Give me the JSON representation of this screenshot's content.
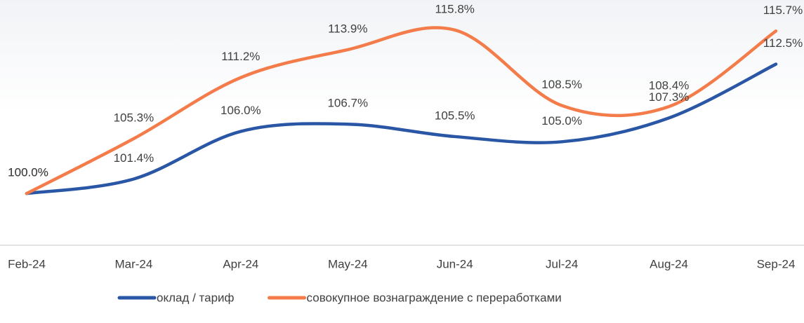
{
  "chart_data": {
    "type": "line",
    "categories": [
      "Feb-24",
      "Mar-24",
      "Apr-24",
      "May-24",
      "Jun-24",
      "Jul-24",
      "Aug-24",
      "Sep-24"
    ],
    "series": [
      {
        "name": "оклад / тариф",
        "color": "#2a57a5",
        "values": [
          100.0,
          101.4,
          106.0,
          106.7,
          105.5,
          105.0,
          107.3,
          112.5
        ],
        "value_labels": [
          "100.0%",
          "101.4%",
          "106.0%",
          "106.7%",
          "105.5%",
          "105.0%",
          "107.3%",
          "112.5%"
        ]
      },
      {
        "name": "совокупное вознаграждение с переработками",
        "color": "#f47c4a",
        "values": [
          100.0,
          105.3,
          111.2,
          113.9,
          115.8,
          108.5,
          108.4,
          115.7
        ],
        "value_labels": [
          "100.0%",
          "105.3%",
          "111.2%",
          "113.9%",
          "115.8%",
          "108.5%",
          "108.4%",
          "115.7%"
        ]
      }
    ],
    "ylim": [
      95,
      118.7
    ]
  }
}
